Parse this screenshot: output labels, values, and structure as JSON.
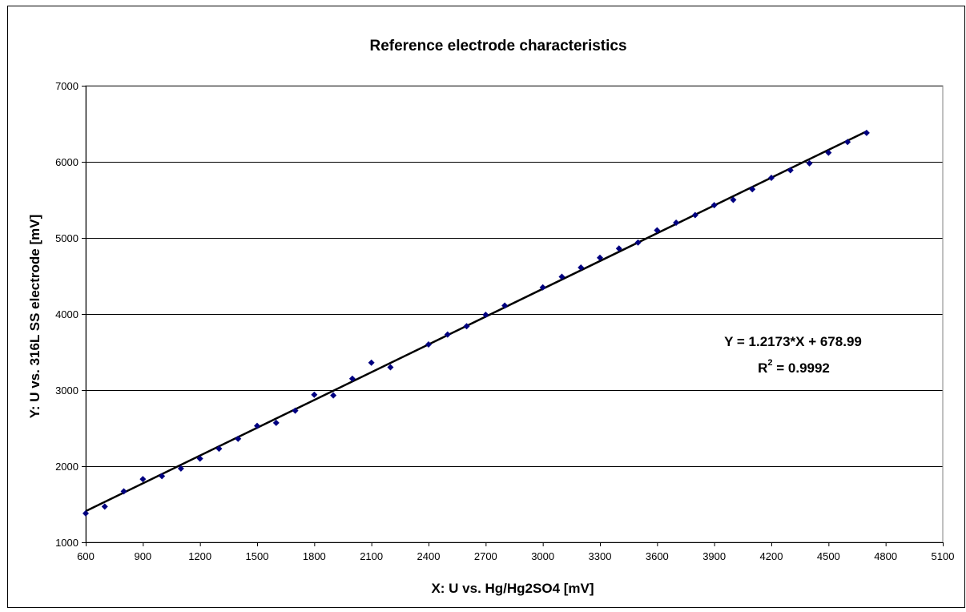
{
  "chart_data": {
    "type": "scatter",
    "title": "Reference electrode characteristics",
    "xlabel": "X:  U vs. Hg/Hg2SO4 [mV]",
    "ylabel": "Y:  U vs. 316L SS electrode [mV]",
    "xlim": [
      600,
      5100
    ],
    "ylim": [
      1000,
      7000
    ],
    "x_ticks": [
      "600",
      "900",
      "1200",
      "1500",
      "1800",
      "2100",
      "2400",
      "2700",
      "3000",
      "3300",
      "3600",
      "3900",
      "4200",
      "4500",
      "4800",
      "5100"
    ],
    "y_ticks": [
      "1000",
      "2000",
      "3000",
      "4000",
      "5000",
      "6000",
      "7000"
    ],
    "grid": "horizontal",
    "legend": "none",
    "marker_color": "#000080",
    "series": [
      {
        "x": [
          600,
          700,
          800,
          900,
          1000,
          1100,
          1200,
          1300,
          1400,
          1500,
          1600,
          1700,
          1800,
          1900,
          2000,
          2100,
          2200,
          2400,
          2500,
          2600,
          2700,
          2800,
          3000,
          3100,
          3200,
          3300,
          3400,
          3500,
          3600,
          3700,
          3800,
          3900,
          4000,
          4100,
          4200,
          4300,
          4400,
          4500,
          4600,
          4700
        ],
        "y": [
          1380,
          1470,
          1670,
          1830,
          1870,
          1970,
          2100,
          2230,
          2360,
          2530,
          2570,
          2730,
          2940,
          2930,
          3150,
          3360,
          3300,
          3600,
          3730,
          3840,
          3990,
          4110,
          4350,
          4490,
          4610,
          4740,
          4860,
          4940,
          5100,
          5200,
          5300,
          5430,
          5500,
          5640,
          5790,
          5890,
          5980,
          6120,
          6260,
          6380
        ]
      }
    ],
    "trendline": {
      "slope": 1.2173,
      "intercept": 678.99,
      "x_range": [
        600,
        4700
      ],
      "color": "#000000"
    },
    "annotations": {
      "equation": "Y = 1.2173*X + 678.99",
      "r2_prefix": "R",
      "r2_sup": "2",
      "r2_value": " = 0.9992"
    }
  }
}
